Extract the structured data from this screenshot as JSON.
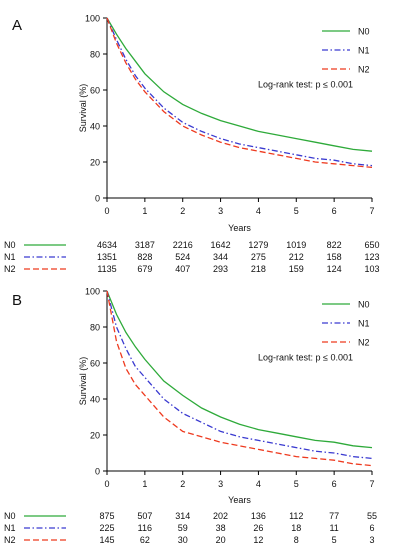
{
  "colors": {
    "N0": "#2eaa3a",
    "N1": "#3a3ad0",
    "N2": "#ee3a1f",
    "axis": "#000000"
  },
  "chart_data": [
    {
      "panel": "A",
      "type": "line",
      "ylabel": "Survival (%)",
      "xlabel": "Years",
      "xlim": [
        0,
        7
      ],
      "ylim": [
        0,
        100
      ],
      "xticks": [
        "0",
        "1",
        "2",
        "3",
        "4",
        "5",
        "6",
        "7"
      ],
      "yticks": [
        "0",
        "20",
        "40",
        "60",
        "80",
        "100"
      ],
      "annotation": "Log-rank test: p ≤ 0.001",
      "legend_position": "top-right",
      "series": [
        {
          "name": "N0",
          "style": "solid",
          "x": [
            0,
            0.25,
            0.5,
            0.75,
            1,
            1.5,
            2,
            2.5,
            3,
            3.5,
            4,
            4.5,
            5,
            5.5,
            6,
            6.5,
            7
          ],
          "y": [
            100,
            91,
            83,
            76,
            69,
            59,
            52,
            47,
            43,
            40,
            37,
            35,
            33,
            31,
            29,
            27,
            26
          ]
        },
        {
          "name": "N1",
          "style": "dashdot",
          "x": [
            0,
            0.25,
            0.5,
            0.75,
            1,
            1.5,
            2,
            2.5,
            3,
            3.5,
            4,
            4.5,
            5,
            5.5,
            6,
            6.5,
            7
          ],
          "y": [
            100,
            88,
            77,
            68,
            61,
            50,
            42,
            37,
            33,
            30,
            28,
            26,
            24,
            22,
            21,
            19,
            18
          ]
        },
        {
          "name": "N2",
          "style": "dashed",
          "x": [
            0,
            0.25,
            0.5,
            0.75,
            1,
            1.5,
            2,
            2.5,
            3,
            3.5,
            4,
            4.5,
            5,
            5.5,
            6,
            6.5,
            7
          ],
          "y": [
            100,
            86,
            75,
            66,
            59,
            48,
            40,
            35,
            31,
            28,
            26,
            24,
            22,
            20,
            19,
            18,
            17
          ]
        }
      ],
      "risk_table": [
        {
          "name": "N0",
          "counts": [
            "4634",
            "3187",
            "2216",
            "1642",
            "1279",
            "1019",
            "822",
            "650"
          ]
        },
        {
          "name": "N1",
          "counts": [
            "1351",
            "828",
            "524",
            "344",
            "275",
            "212",
            "158",
            "123"
          ]
        },
        {
          "name": "N2",
          "counts": [
            "1135",
            "679",
            "407",
            "293",
            "218",
            "159",
            "124",
            "103"
          ]
        }
      ]
    },
    {
      "panel": "B",
      "type": "line",
      "ylabel": "Survival (%)",
      "xlabel": "Years",
      "xlim": [
        0,
        7
      ],
      "ylim": [
        0,
        100
      ],
      "xticks": [
        "0",
        "1",
        "2",
        "3",
        "4",
        "5",
        "6",
        "7"
      ],
      "yticks": [
        "0",
        "20",
        "40",
        "60",
        "80",
        "100"
      ],
      "annotation": "Log-rank test: p ≤ 0.001",
      "legend_position": "top-right",
      "series": [
        {
          "name": "N0",
          "style": "solid",
          "x": [
            0,
            0.25,
            0.5,
            0.75,
            1,
            1.5,
            2,
            2.5,
            3,
            3.5,
            4,
            4.5,
            5,
            5.5,
            6,
            6.5,
            7
          ],
          "y": [
            100,
            87,
            77,
            69,
            62,
            50,
            42,
            35,
            30,
            26,
            23,
            21,
            19,
            17,
            16,
            14,
            13
          ]
        },
        {
          "name": "N1",
          "style": "dashdot",
          "x": [
            0,
            0.25,
            0.5,
            0.75,
            1,
            1.5,
            2,
            2.5,
            3,
            3.5,
            4,
            4.5,
            5,
            5.5,
            6,
            6.5,
            7
          ],
          "y": [
            100,
            80,
            68,
            58,
            52,
            40,
            32,
            27,
            22,
            19,
            17,
            15,
            13,
            11,
            10,
            8,
            7
          ]
        },
        {
          "name": "N2",
          "style": "dashed",
          "x": [
            0,
            0.25,
            0.5,
            0.75,
            1,
            1.5,
            2,
            2.5,
            3,
            3.5,
            4,
            4.5,
            5,
            5.5,
            6,
            6.5,
            7
          ],
          "y": [
            100,
            72,
            57,
            48,
            42,
            30,
            22,
            19,
            16,
            14,
            12,
            10,
            8,
            7,
            6,
            4,
            3
          ]
        }
      ],
      "risk_table": [
        {
          "name": "N0",
          "counts": [
            "875",
            "507",
            "314",
            "202",
            "136",
            "112",
            "77",
            "55"
          ]
        },
        {
          "name": "N1",
          "counts": [
            "225",
            "116",
            "59",
            "38",
            "26",
            "18",
            "11",
            "6"
          ]
        },
        {
          "name": "N2",
          "counts": [
            "145",
            "62",
            "30",
            "20",
            "12",
            "8",
            "5",
            "3"
          ]
        }
      ]
    }
  ]
}
